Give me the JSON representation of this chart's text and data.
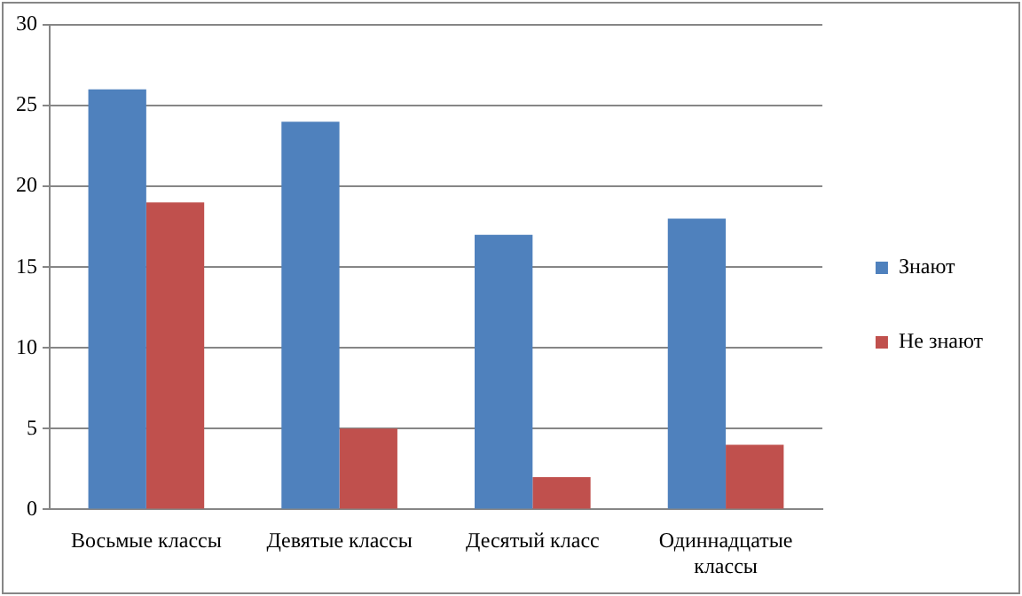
{
  "chart_data": {
    "type": "bar",
    "categories": [
      "Восьмые классы",
      "Девятые классы",
      "Десятый класс",
      "Одиннадцатые классы"
    ],
    "series": [
      {
        "name": "Знают",
        "color": "#4f81bd",
        "values": [
          26,
          24,
          17,
          18
        ]
      },
      {
        "name": "Не знают",
        "color": "#c0504d",
        "values": [
          19,
          5,
          2,
          4
        ]
      }
    ],
    "ylim": [
      0,
      30
    ],
    "yticks": [
      0,
      5,
      10,
      15,
      20,
      25,
      30
    ],
    "grid": "y",
    "legend": "right"
  }
}
